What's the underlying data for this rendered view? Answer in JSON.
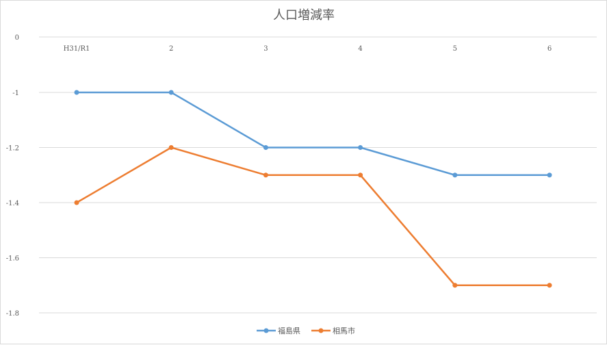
{
  "chart_data": {
    "type": "line",
    "title": "人口増減率",
    "categories": [
      "H31/R1",
      "2",
      "3",
      "4",
      "5",
      "6"
    ],
    "ylim": [
      -1.8,
      0
    ],
    "yticks": [
      "0",
      "-1",
      "-1.2",
      "-1.4",
      "-1.6",
      "-1.8"
    ],
    "y_axis_break": true,
    "grid": true,
    "legend_position": "bottom",
    "series": [
      {
        "name": "福島県",
        "color": "#5b9bd5",
        "values": [
          -1.0,
          -1.0,
          -1.2,
          -1.2,
          -1.3,
          -1.3
        ]
      },
      {
        "name": "相馬市",
        "color": "#ed7d31",
        "values": [
          -1.4,
          -1.2,
          -1.3,
          -1.3,
          -1.7,
          -1.7
        ]
      }
    ]
  }
}
